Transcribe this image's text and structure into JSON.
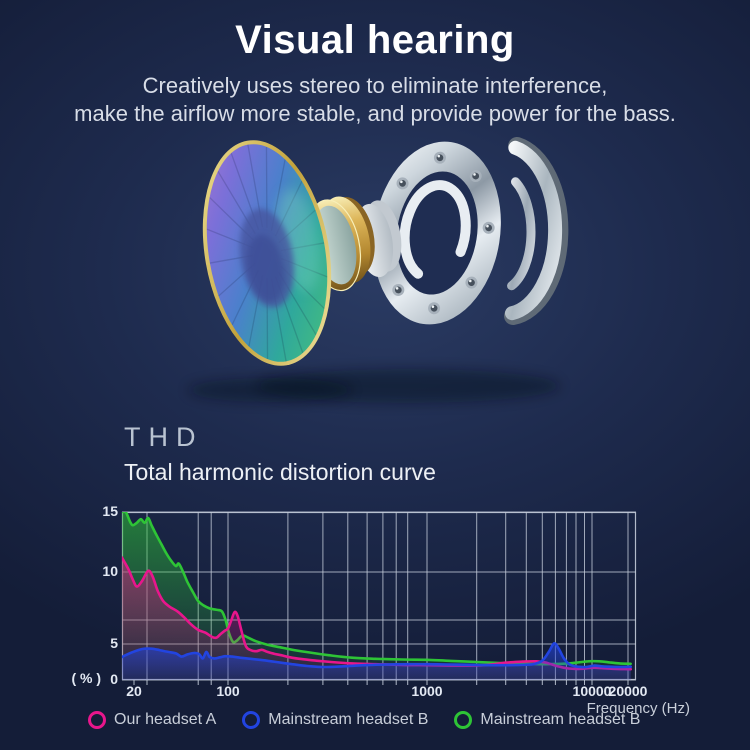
{
  "header": {
    "title": "Visual hearing",
    "subtitle_line1": "Creatively uses stereo to eliminate interference,",
    "subtitle_line2": "make the airflow more stable, and provide power for the bass."
  },
  "illustration": {
    "description": "exploded view of earphone speaker driver: iridescent diaphragm, gold voice-coil ring, magnet disc, chrome faceplate ring with screw holes, chrome back shell"
  },
  "section": {
    "heading": "THD",
    "subheading": "Total harmonic distortion curve"
  },
  "chart_data": {
    "type": "line",
    "title": "Total harmonic distortion curve",
    "xlabel": "Frequency (Hz)",
    "ylabel": "( % )",
    "x_scale": "log",
    "xlim": [
      16,
      21500
    ],
    "ylim": [
      0,
      15
    ],
    "x_ticks": [
      20,
      100,
      1000,
      10000,
      20000
    ],
    "y_ticks": [
      15,
      10,
      5,
      0
    ],
    "x_gridlines": [
      25,
      60,
      75,
      100,
      200,
      300,
      400,
      500,
      600,
      700,
      800,
      1000,
      2000,
      3000,
      4000,
      5000,
      6000,
      7000,
      8000,
      9000,
      10000,
      20000
    ],
    "y_gridlines": [
      0,
      5,
      6.7,
      10,
      15
    ],
    "grid": true,
    "legend_position": "bottom",
    "series": [
      {
        "name": "Our headset A",
        "color": "#e8168c",
        "points": [
          [
            15.8,
            11.2
          ],
          [
            18,
            10.2
          ],
          [
            19.5,
            9.5
          ],
          [
            21,
            9.0
          ],
          [
            23,
            9.4
          ],
          [
            25.5,
            10.1
          ],
          [
            27.5,
            9.7
          ],
          [
            30,
            8.7
          ],
          [
            33,
            8.0
          ],
          [
            37,
            7.6
          ],
          [
            42,
            7.3
          ],
          [
            47,
            6.9
          ],
          [
            53,
            6.4
          ],
          [
            60,
            6.0
          ],
          [
            68,
            5.8
          ],
          [
            76,
            5.5
          ],
          [
            82,
            5.45
          ],
          [
            88,
            5.7
          ],
          [
            95,
            5.95
          ],
          [
            100,
            6.1
          ],
          [
            104,
            6.7
          ],
          [
            108,
            7.25
          ],
          [
            112,
            6.95
          ],
          [
            117,
            5.9
          ],
          [
            123,
            4.7
          ],
          [
            130,
            4.15
          ],
          [
            139,
            4.0
          ],
          [
            148,
            4.2
          ],
          [
            158,
            3.9
          ],
          [
            170,
            3.65
          ],
          [
            185,
            3.45
          ],
          [
            205,
            3.15
          ],
          [
            235,
            2.9
          ],
          [
            275,
            2.7
          ],
          [
            330,
            2.5
          ],
          [
            420,
            2.3
          ],
          [
            550,
            2.2
          ],
          [
            750,
            2.1
          ],
          [
            1000,
            2.05
          ],
          [
            1500,
            2.0
          ],
          [
            2200,
            2.05
          ],
          [
            3000,
            2.4
          ],
          [
            3800,
            2.55
          ],
          [
            4600,
            2.6
          ],
          [
            5300,
            2.4
          ],
          [
            6200,
            1.9
          ],
          [
            7200,
            1.6
          ],
          [
            8500,
            1.55
          ],
          [
            10000,
            1.7
          ],
          [
            12000,
            1.65
          ],
          [
            15000,
            1.55
          ],
          [
            20500,
            1.5
          ]
        ]
      },
      {
        "name": "Mainstream headset B",
        "color": "#2244e0",
        "points": [
          [
            15.8,
            3.2
          ],
          [
            19,
            3.8
          ],
          [
            23,
            4.3
          ],
          [
            27,
            4.35
          ],
          [
            31,
            4.15
          ],
          [
            36,
            3.9
          ],
          [
            41,
            3.7
          ],
          [
            45,
            3.25
          ],
          [
            50,
            3.55
          ],
          [
            56,
            3.75
          ],
          [
            61,
            3.6
          ],
          [
            65,
            3.0
          ],
          [
            69,
            3.9
          ],
          [
            73,
            3.2
          ],
          [
            79,
            3.0
          ],
          [
            87,
            3.15
          ],
          [
            95,
            3.3
          ],
          [
            105,
            3.25
          ],
          [
            115,
            3.1
          ],
          [
            130,
            2.95
          ],
          [
            150,
            2.75
          ],
          [
            175,
            2.5
          ],
          [
            210,
            2.2
          ],
          [
            250,
            1.95
          ],
          [
            300,
            1.8
          ],
          [
            380,
            1.9
          ],
          [
            480,
            2.05
          ],
          [
            620,
            2.15
          ],
          [
            800,
            2.2
          ],
          [
            1000,
            2.2
          ],
          [
            1400,
            2.15
          ],
          [
            2000,
            2.1
          ],
          [
            2800,
            2.05
          ],
          [
            3600,
            2.1
          ],
          [
            4400,
            2.2
          ],
          [
            5000,
            2.7
          ],
          [
            5500,
            4.0
          ],
          [
            5900,
            5.05
          ],
          [
            6300,
            4.3
          ],
          [
            6800,
            2.9
          ],
          [
            7400,
            2.1
          ],
          [
            8200,
            1.85
          ],
          [
            9200,
            1.8
          ],
          [
            10500,
            2.0
          ],
          [
            12000,
            1.9
          ],
          [
            14000,
            1.85
          ],
          [
            17000,
            1.8
          ],
          [
            20500,
            1.85
          ]
        ]
      },
      {
        "name": "Mainstream headset B",
        "color": "#2ec436",
        "points": [
          [
            15.8,
            15.3
          ],
          [
            17,
            15.0
          ],
          [
            18.5,
            14.2
          ],
          [
            19.5,
            13.9
          ],
          [
            21,
            14.1
          ],
          [
            22.5,
            14.4
          ],
          [
            24,
            14.1
          ],
          [
            25.5,
            14.5
          ],
          [
            27,
            13.9
          ],
          [
            29,
            13.2
          ],
          [
            32,
            12.3
          ],
          [
            35,
            11.5
          ],
          [
            38,
            10.9
          ],
          [
            41,
            10.5
          ],
          [
            43,
            10.7
          ],
          [
            46,
            10.1
          ],
          [
            50,
            9.3
          ],
          [
            55,
            8.6
          ],
          [
            60,
            8.0
          ],
          [
            66,
            7.7
          ],
          [
            73,
            7.5
          ],
          [
            82,
            7.4
          ],
          [
            90,
            7.3
          ],
          [
            96,
            6.7
          ],
          [
            101,
            5.8
          ],
          [
            106,
            5.15
          ],
          [
            111,
            5.25
          ],
          [
            118,
            5.6
          ],
          [
            126,
            5.45
          ],
          [
            138,
            5.2
          ],
          [
            158,
            4.9
          ],
          [
            182,
            4.55
          ],
          [
            215,
            4.15
          ],
          [
            260,
            3.8
          ],
          [
            320,
            3.45
          ],
          [
            420,
            3.1
          ],
          [
            550,
            2.95
          ],
          [
            750,
            2.85
          ],
          [
            1000,
            2.8
          ],
          [
            1400,
            2.65
          ],
          [
            2000,
            2.5
          ],
          [
            2800,
            2.35
          ],
          [
            3800,
            2.25
          ],
          [
            5000,
            2.2
          ],
          [
            6500,
            2.25
          ],
          [
            8000,
            2.4
          ],
          [
            9500,
            2.6
          ],
          [
            11500,
            2.6
          ],
          [
            14000,
            2.45
          ],
          [
            17000,
            2.3
          ],
          [
            20500,
            2.25
          ]
        ]
      }
    ]
  },
  "colors": {
    "background": "#141d38",
    "background_glow": "#2b3c64",
    "grid": "#c3cbd9",
    "title": "#ffffff",
    "subtitle": "#d8dde7",
    "heading": "#b9c3d1",
    "tick": "#e3e9f3",
    "legend_text": "#c8ced9"
  }
}
